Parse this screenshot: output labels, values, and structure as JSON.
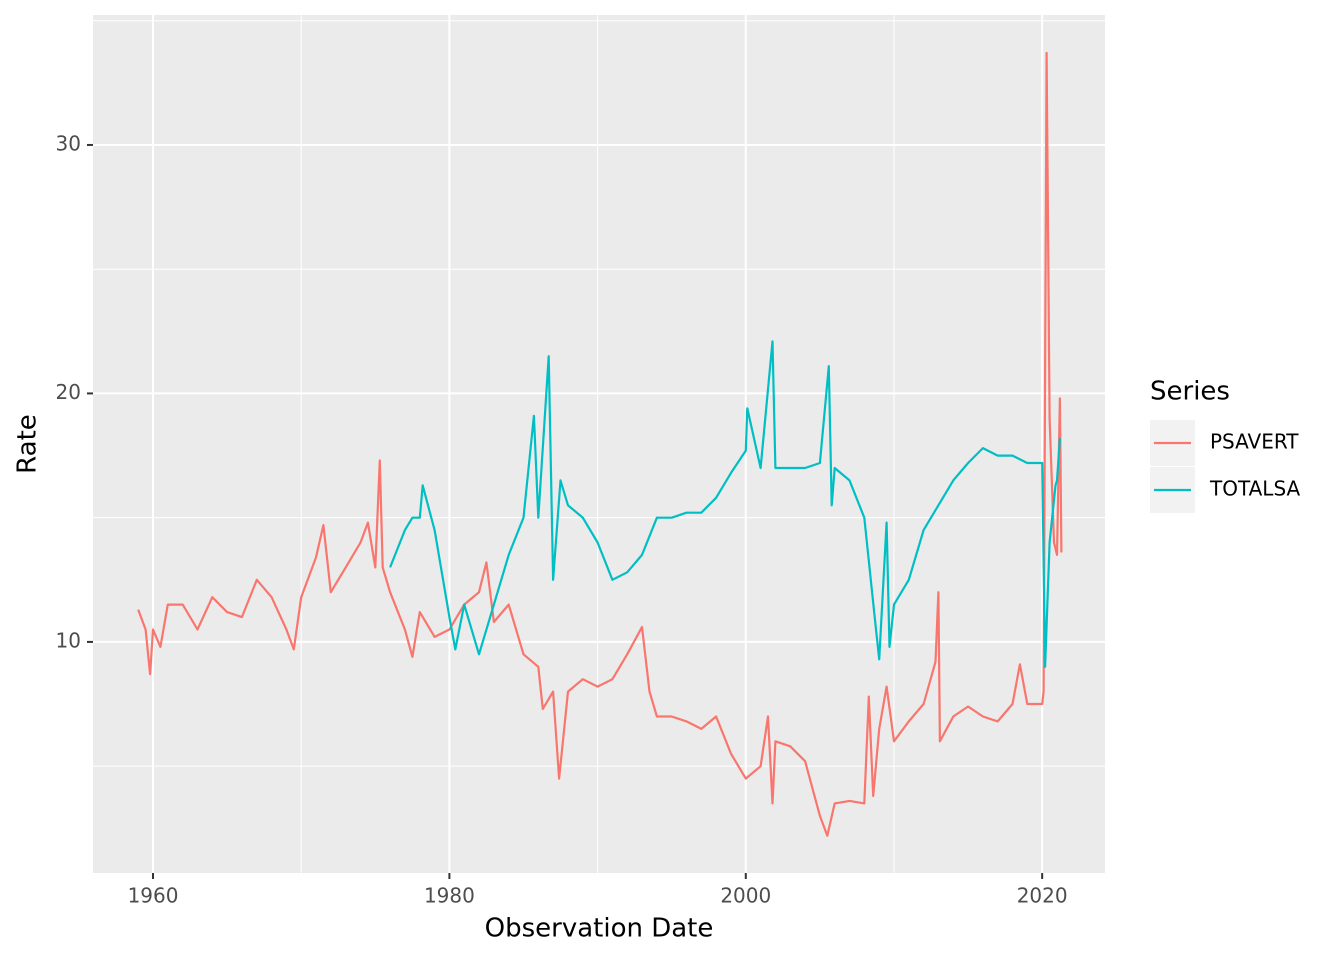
{
  "chart_data": {
    "type": "line",
    "x_label": "Observation Date",
    "y_label": "Rate",
    "legend_title": "Series",
    "legend_position": "right",
    "xlim": [
      1955.95,
      2024.24
    ],
    "xticks": [
      1960,
      1980,
      2000,
      2020
    ],
    "x_minor_ticks": [
      1970,
      1990,
      2010
    ],
    "ylim": [
      0.7,
      35.23
    ],
    "yticks": [
      10,
      20,
      30
    ],
    "y_minor_ticks": [
      5,
      15,
      25,
      35
    ],
    "grid": true,
    "series": [
      {
        "name": "PSAVERT",
        "color": "#F8766D",
        "x": [
          1959,
          1959.5,
          1959.8,
          1960,
          1960.5,
          1961,
          1962,
          1963,
          1964,
          1965,
          1966,
          1967,
          1968,
          1969,
          1969.5,
          1970,
          1971,
          1971.5,
          1972,
          1973,
          1974,
          1974.5,
          1975,
          1975.3,
          1975.5,
          1976,
          1977,
          1977.5,
          1978,
          1979,
          1980,
          1981,
          1982,
          1982.5,
          1983,
          1984,
          1985,
          1986,
          1986.3,
          1987,
          1987.4,
          1988,
          1989,
          1990,
          1991,
          1992,
          1993,
          1993.5,
          1994,
          1995,
          1996,
          1997,
          1998,
          1999,
          2000,
          2001,
          2001.5,
          2001.8,
          2002,
          2003,
          2004,
          2005,
          2005.5,
          2006,
          2007,
          2008,
          2008.3,
          2008.6,
          2009,
          2009.5,
          2010,
          2011,
          2012,
          2012.8,
          2013,
          2013.1,
          2014,
          2015,
          2016,
          2017,
          2018,
          2018.5,
          2019,
          2020,
          2020.1,
          2020.3,
          2020.5,
          2020.8,
          2021,
          2021.2,
          2021.3
        ],
        "values": [
          11.3,
          10.5,
          8.7,
          10.5,
          9.8,
          11.5,
          11.5,
          10.5,
          11.8,
          11.2,
          11.0,
          12.5,
          11.8,
          10.5,
          9.7,
          11.8,
          13.4,
          14.7,
          12.0,
          13.0,
          14.0,
          14.8,
          13.0,
          17.3,
          13.0,
          12.0,
          10.5,
          9.4,
          11.2,
          10.2,
          10.5,
          11.5,
          12.0,
          13.2,
          10.8,
          11.5,
          9.5,
          9.0,
          7.3,
          8.0,
          4.5,
          8.0,
          8.5,
          8.2,
          8.5,
          9.5,
          10.6,
          8.0,
          7.0,
          7.0,
          6.8,
          6.5,
          7.0,
          5.5,
          4.5,
          5.0,
          7.0,
          3.5,
          6.0,
          5.8,
          5.2,
          3.0,
          2.2,
          3.5,
          3.6,
          3.5,
          7.8,
          3.8,
          6.5,
          8.2,
          6.0,
          6.8,
          7.5,
          9.2,
          12.0,
          6.0,
          7.0,
          7.4,
          7.0,
          6.8,
          7.5,
          9.1,
          7.5,
          7.5,
          8.0,
          33.7,
          19.0,
          14.0,
          13.5,
          19.8,
          13.6
        ]
      },
      {
        "name": "TOTALSA",
        "color": "#00BFC4",
        "x": [
          1976,
          1977,
          1977.5,
          1978,
          1978.2,
          1979,
          1980,
          1980.4,
          1981,
          1982,
          1983,
          1984,
          1985,
          1985.7,
          1986,
          1986.7,
          1987,
          1987.5,
          1988,
          1989,
          1990,
          1991,
          1992,
          1993,
          1994,
          1995,
          1996,
          1997,
          1998,
          1999,
          2000,
          2000.1,
          2001,
          2001.8,
          2002,
          2003,
          2004,
          2005,
          2005.6,
          2005.8,
          2006,
          2007,
          2008,
          2008.7,
          2009,
          2009.5,
          2009.7,
          2010,
          2011,
          2012,
          2013,
          2014,
          2015,
          2016,
          2017,
          2018,
          2019,
          2020,
          2020.2,
          2020.5,
          2020.9,
          2021,
          2021.2
        ],
        "values": [
          13.0,
          14.5,
          15.0,
          15.0,
          16.3,
          14.5,
          11.0,
          9.7,
          11.5,
          9.5,
          11.5,
          13.5,
          15.0,
          19.1,
          15.0,
          21.5,
          12.5,
          16.5,
          15.5,
          15.0,
          14.0,
          12.5,
          12.8,
          13.5,
          15.0,
          15.0,
          15.2,
          15.2,
          15.8,
          16.8,
          17.7,
          19.4,
          17.0,
          22.1,
          17.0,
          17.0,
          17.0,
          17.2,
          21.1,
          15.5,
          17.0,
          16.5,
          15.0,
          11.0,
          9.3,
          14.8,
          9.8,
          11.5,
          12.5,
          14.5,
          15.5,
          16.5,
          17.2,
          17.8,
          17.5,
          17.5,
          17.2,
          17.2,
          9.0,
          14.0,
          16.3,
          16.5,
          18.2
        ]
      }
    ]
  }
}
